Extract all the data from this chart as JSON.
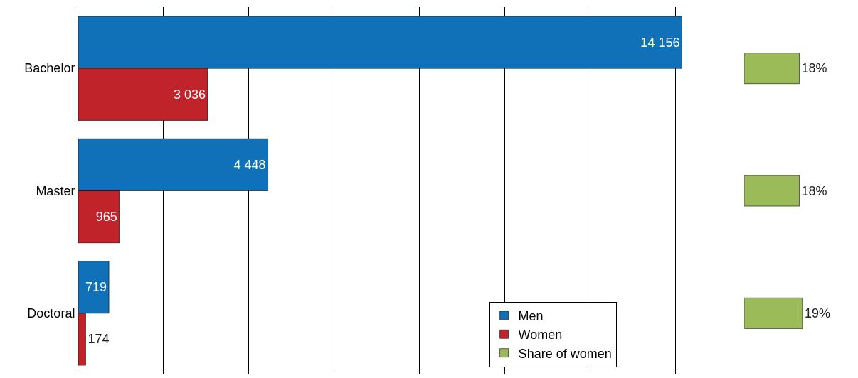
{
  "chart_data": [
    {
      "type": "bar",
      "orientation": "horizontal",
      "categories": [
        "Bachelor",
        "Master",
        "Doctoral"
      ],
      "series": [
        {
          "name": "Men",
          "color": "#1070b8",
          "values": [
            14156,
            4448,
            719
          ],
          "value_labels": [
            "14 156",
            "4 448",
            "719"
          ]
        },
        {
          "name": "Women",
          "color": "#c0232a",
          "values": [
            3036,
            965,
            174
          ],
          "value_labels": [
            "3 036",
            "965",
            "174"
          ]
        }
      ],
      "grid": "x",
      "legend": "bottom",
      "tick_labels": "y"
    },
    {
      "type": "bar",
      "orientation": "horizontal",
      "categories": [
        null,
        null,
        null
      ],
      "series": [
        {
          "name": "Share of women",
          "color": "#9bbb59",
          "values": [
            18,
            18,
            19
          ],
          "value_labels": [
            "18%",
            "18%",
            "19%"
          ]
        }
      ],
      "tick_labels": false
    }
  ]
}
